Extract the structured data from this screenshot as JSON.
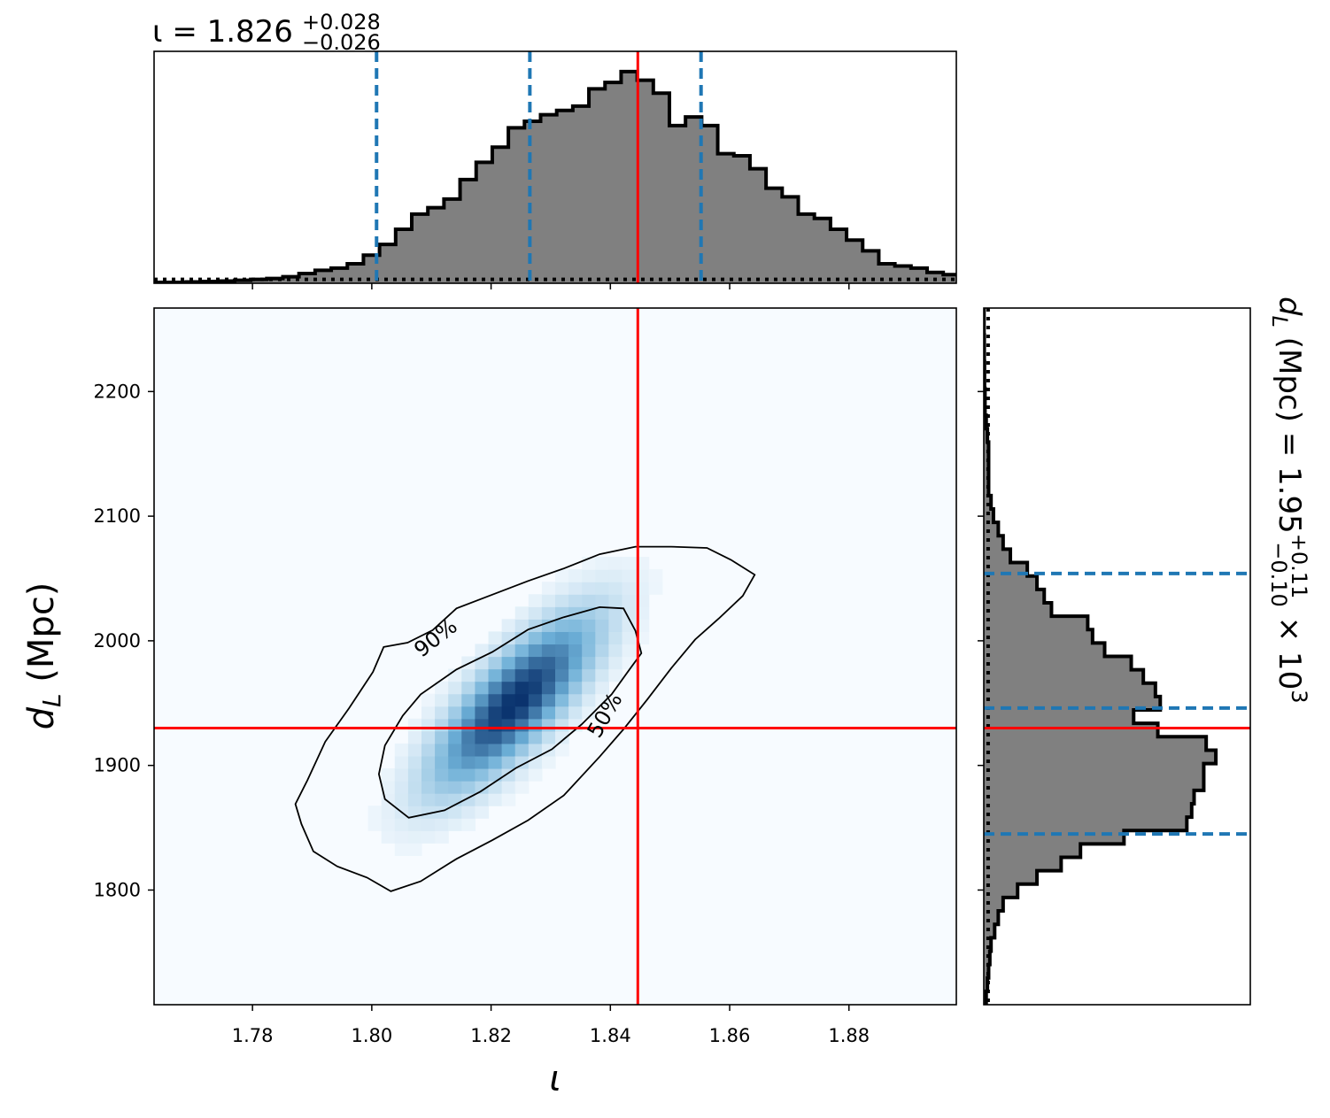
{
  "colors": {
    "truth": "#ff0000",
    "quantile": "#1f77b4",
    "hist_fill": "#808080",
    "hist_edge": "#000000",
    "prior": "#000000",
    "density_colormap": "Blues",
    "density_low": "#f7fbff",
    "density_high": "#08306b"
  },
  "chart_data": [
    {
      "type": "histogram",
      "panel": "iota-marginal",
      "title_prefix": "ι = 1.826",
      "title_upper": "+0.028",
      "title_lower": "−0.026",
      "xlim": [
        1.7635,
        1.898
      ],
      "bin_edges_start": 1.7635,
      "bin_width": 0.0027,
      "counts": [
        0.004,
        0.004,
        0.006,
        0.008,
        0.01,
        0.014,
        0.018,
        0.022,
        0.03,
        0.045,
        0.06,
        0.07,
        0.09,
        0.13,
        0.18,
        0.25,
        0.32,
        0.35,
        0.39,
        0.48,
        0.56,
        0.63,
        0.72,
        0.75,
        0.78,
        0.8,
        0.82,
        0.9,
        0.93,
        0.98,
        0.94,
        0.88,
        0.73,
        0.77,
        0.73,
        0.6,
        0.59,
        0.53,
        0.44,
        0.4,
        0.32,
        0.3,
        0.25,
        0.2,
        0.15,
        0.09,
        0.08,
        0.07,
        0.05,
        0.04,
        0.02,
        0.02
      ],
      "prior_level": 0.018,
      "quantiles": [
        1.8008,
        1.8265,
        1.8552
      ],
      "truth": 1.8446
    },
    {
      "type": "heatmap",
      "panel": "joint-density",
      "xlim": [
        1.7635,
        1.898
      ],
      "ylim": [
        1708,
        2267
      ],
      "xticks": [
        "1.78",
        "1.80",
        "1.82",
        "1.84",
        "1.86",
        "1.88"
      ],
      "xtick_values": [
        1.78,
        1.8,
        1.82,
        1.84,
        1.86,
        1.88
      ],
      "yticks": [
        "1800",
        "1900",
        "2000",
        "2100",
        "2200"
      ],
      "ytick_values": [
        1800,
        1900,
        2000,
        2100,
        2200
      ],
      "xlabel": "ι",
      "ylabel_main": "d",
      "ylabel_sub": "L",
      "ylabel_unit": " (Mpc)",
      "contour_labels": [
        "90%",
        "50%"
      ],
      "contour_90": [
        [
          1.802,
          1.995
        ],
        [
          1.806,
          1.9985
        ],
        [
          1.8102,
          2.0085
        ],
        [
          1.8142,
          2.026
        ],
        [
          1.8202,
          2.037
        ],
        [
          1.8262,
          2.048
        ],
        [
          1.8322,
          2.058
        ],
        [
          1.8382,
          2.0695
        ],
        [
          1.8442,
          2.0755
        ],
        [
          1.8502,
          2.0755
        ],
        [
          1.8562,
          2.0745
        ],
        [
          1.8602,
          2.065
        ],
        [
          1.8642,
          2.053
        ],
        [
          1.8622,
          2.036
        ],
        [
          1.8582,
          2.018
        ],
        [
          1.8542,
          2.001
        ],
        [
          1.8502,
          1.978
        ],
        [
          1.8462,
          1.953
        ],
        [
          1.8422,
          1.929
        ],
        [
          1.8382,
          1.907
        ],
        [
          1.8322,
          1.876
        ],
        [
          1.8262,
          1.856
        ],
        [
          1.8202,
          1.84
        ],
        [
          1.8142,
          1.825
        ],
        [
          1.8082,
          1.807
        ],
        [
          1.8032,
          1.799
        ],
        [
          1.7992,
          1.81
        ],
        [
          1.7942,
          1.819
        ],
        [
          1.7902,
          1.831
        ],
        [
          1.7882,
          1.853
        ],
        [
          1.7872,
          1.869
        ],
        [
          1.7892,
          1.888
        ],
        [
          1.7922,
          1.919
        ],
        [
          1.7962,
          1.946
        ],
        [
          1.8002,
          1.975
        ],
        [
          1.802,
          1.995
        ]
      ],
      "contour_50": [
        [
          1.8052,
          1.94
        ],
        [
          1.8082,
          1.957
        ],
        [
          1.8142,
          1.977
        ],
        [
          1.8202,
          1.991
        ],
        [
          1.8262,
          2.009
        ],
        [
          1.8322,
          2.019
        ],
        [
          1.8382,
          2.027
        ],
        [
          1.8422,
          2.026
        ],
        [
          1.8442,
          2.008
        ],
        [
          1.8452,
          1.99
        ],
        [
          1.8432,
          1.977
        ],
        [
          1.8402,
          1.957
        ],
        [
          1.8352,
          1.933
        ],
        [
          1.8302,
          1.913
        ],
        [
          1.8242,
          1.898
        ],
        [
          1.8182,
          1.879
        ],
        [
          1.8122,
          1.864
        ],
        [
          1.8062,
          1.858
        ],
        [
          1.8022,
          1.873
        ],
        [
          1.8012,
          1.893
        ],
        [
          1.8022,
          1.916
        ],
        [
          1.8052,
          1.94
        ]
      ],
      "truth_x": 1.8446,
      "truth_y": 1930,
      "density_center": [
        1.824,
        1951
      ],
      "density_sigma": [
        0.0085,
        43
      ],
      "density_correlation": 0.78
    },
    {
      "type": "histogram",
      "orientation": "horizontal",
      "panel": "dL-marginal",
      "title_prefix": "d",
      "title_sub": "L",
      "title_unit": " (Mpc) = 1.95",
      "title_upper": "+0.11",
      "title_lower": "−0.10",
      "title_scale": " × 10",
      "title_exp": "3",
      "ylim": [
        1708,
        2267
      ],
      "bin_edges_start": 1708,
      "bin_width": 10.75,
      "counts": [
        0.01,
        0.015,
        0.02,
        0.025,
        0.03,
        0.045,
        0.06,
        0.08,
        0.14,
        0.22,
        0.32,
        0.4,
        0.58,
        0.84,
        0.86,
        0.87,
        0.91,
        0.91,
        0.96,
        0.92,
        0.72,
        0.62,
        0.73,
        0.71,
        0.66,
        0.61,
        0.5,
        0.45,
        0.43,
        0.28,
        0.25,
        0.22,
        0.18,
        0.11,
        0.08,
        0.06,
        0.04,
        0.03,
        0.02,
        0.02,
        0.02,
        0.02,
        0.015,
        0.01,
        0.005,
        0.005,
        0.003,
        0.003,
        0.002,
        0.002,
        0.001,
        0.001
      ],
      "prior_level": 0.018,
      "quantiles": [
        1845,
        1946,
        2054
      ],
      "truth": 1930
    }
  ]
}
